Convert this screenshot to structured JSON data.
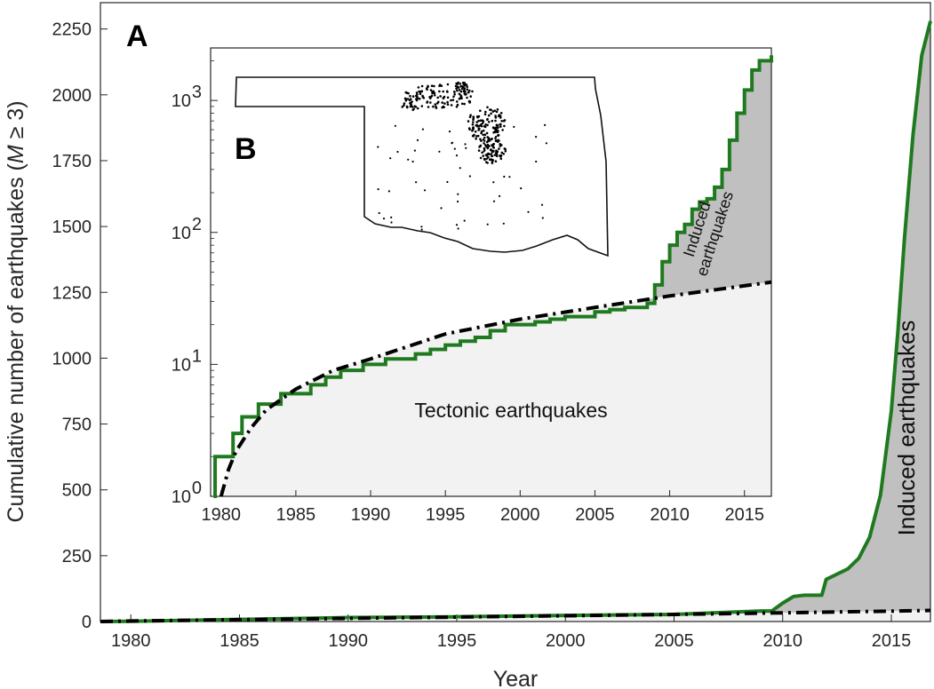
{
  "chart_data": [
    {
      "panel": "A",
      "type": "line",
      "title": "",
      "xlabel": "Year",
      "ylabel": "Cumulative number of earthquakes (M ≥ 3)",
      "xlim": [
        1978.6,
        2016.8
      ],
      "ylim": [
        0,
        2350
      ],
      "xticks": [
        1980,
        1985,
        1990,
        1995,
        2000,
        2005,
        2010,
        2015
      ],
      "yticks": [
        0,
        250,
        500,
        750,
        1000,
        1250,
        1500,
        1750,
        2000,
        2250
      ],
      "grid": false,
      "annotations": [
        "Induced earthquakes"
      ],
      "series": [
        {
          "style": "solid",
          "color": "#1f7a1f",
          "x": [
            1978.6,
            1980,
            1985,
            1990,
            1995,
            2000,
            2005,
            2009,
            2009.5,
            2010,
            2010.5,
            2011,
            2011.8,
            2012,
            2012.5,
            2013,
            2013.5,
            2014,
            2014.5,
            2015,
            2015.3,
            2015.6,
            2016,
            2016.4,
            2016.8
          ],
          "y": [
            0,
            1,
            8,
            15,
            18,
            23,
            27,
            40,
            40,
            70,
            95,
            100,
            100,
            160,
            180,
            200,
            240,
            320,
            480,
            800,
            1100,
            1450,
            1850,
            2150,
            2280
          ]
        },
        {
          "style": "dash-dot",
          "color": "#000000",
          "x": [
            1978.6,
            1980,
            1985,
            1990,
            1995,
            2000,
            2005,
            2010,
            2016.8
          ],
          "y": [
            0,
            2,
            7,
            12,
            17,
            22,
            27,
            33,
            42
          ]
        }
      ]
    },
    {
      "panel": "B",
      "type": "line",
      "title": "",
      "xlabel": "",
      "ylabel": "",
      "yscale": "log",
      "xlim": [
        1979.3,
        2016.8
      ],
      "ylim": [
        1,
        2500
      ],
      "xticks": [
        1980,
        1985,
        1990,
        1995,
        2000,
        2005,
        2010,
        2015
      ],
      "ytick_labels": [
        "10",
        "10",
        "10",
        "10"
      ],
      "ytick_exponents": [
        "0",
        "1",
        "2",
        "3"
      ],
      "ytick_values": [
        1,
        10,
        100,
        1000
      ],
      "grid": false,
      "annotations": {
        "tectonic": "Tectonic earthquakes",
        "induced_line1": "Induced",
        "induced_line2": "earthquakes"
      },
      "series": [
        {
          "style": "step",
          "color": "#1f7a1f",
          "x": [
            1979.5,
            1979.6,
            1980.8,
            1981.4,
            1982.5,
            1984,
            1986,
            1987,
            1988,
            1989.5,
            1991,
            1993,
            1994,
            1995,
            1996,
            1997,
            1998,
            1999,
            2001,
            2002,
            2003,
            2005,
            2006,
            2007,
            2008.5,
            2009,
            2009.5,
            2010,
            2010.5,
            2011,
            2011.5,
            2012,
            2012.5,
            2013,
            2013.5,
            2014,
            2014.5,
            2015,
            2015.5,
            2016,
            2016.8
          ],
          "y": [
            1,
            2,
            3,
            4,
            5,
            6,
            7,
            8,
            9,
            10,
            11,
            12,
            13,
            14,
            15,
            16,
            18,
            20,
            21,
            22,
            23,
            25,
            26,
            27,
            29,
            40,
            60,
            80,
            100,
            115,
            150,
            170,
            180,
            220,
            300,
            500,
            800,
            1200,
            1700,
            2000,
            2200
          ]
        },
        {
          "style": "dash-dot",
          "color": "#000000",
          "x": [
            1980,
            1980.5,
            1981,
            1982,
            1983,
            1985,
            1987.5,
            1990,
            1995,
            2000,
            2005,
            2010,
            2016.8
          ],
          "y": [
            1,
            1.6,
            2.2,
            3.3,
            4.5,
            6.5,
            9,
            11,
            17,
            22,
            27,
            33,
            42
          ]
        }
      ],
      "inset_map": {
        "panel": "B",
        "epicenter_color": "#000000"
      }
    }
  ]
}
